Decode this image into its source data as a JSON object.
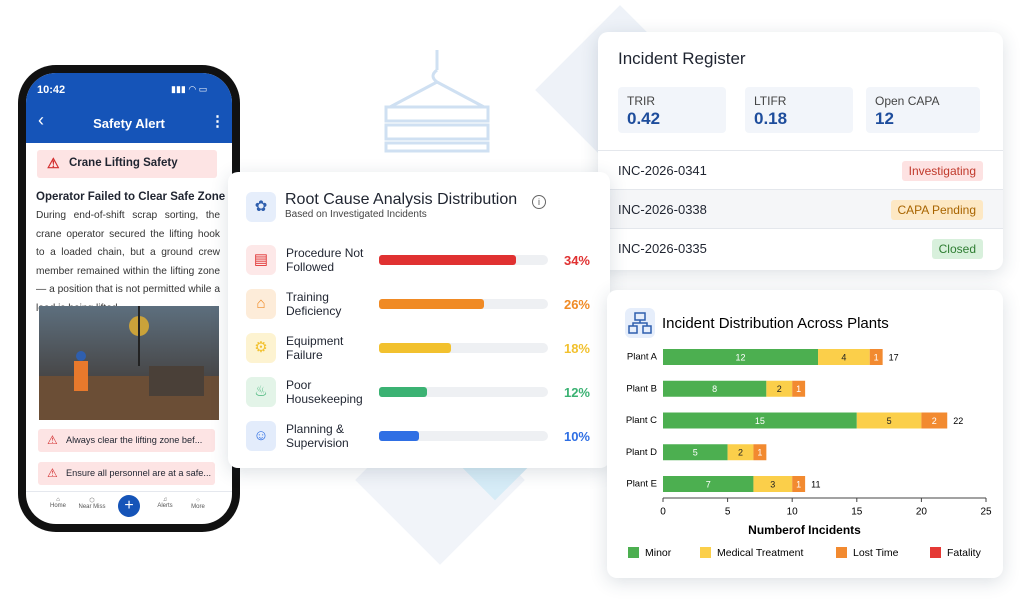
{
  "phone": {
    "time": "10:42",
    "title": "Safety Alert",
    "alert": "Crane Lifting Safety",
    "heading": "Operator Failed to Clear Safe Zone",
    "body": "During end-of-shift scrap sorting, the crane operator secured the lifting hook to a loaded chain, but a ground crew member remained within the lifting zone — a position that is not permitted while a load is being lifted.",
    "tips": [
      "Always clear the lifting zone bef...",
      "Ensure all personnel are at a safe..."
    ],
    "nav": [
      "Home",
      "Near Miss",
      "Alerts",
      "More"
    ]
  },
  "incident_register": {
    "title": "Incident Register",
    "kpis": [
      {
        "label": "TRIR",
        "value": 0.42
      },
      {
        "label": "LTIFR",
        "value": 0.18
      },
      {
        "label": "Open CAPA",
        "value": 12
      }
    ],
    "rows": [
      {
        "id": "INC-2026-0341",
        "status": "Investigating"
      },
      {
        "id": "INC-2026-0338",
        "status": "CAPA Pending"
      },
      {
        "id": "INC-2026-0335",
        "status": "Closed"
      }
    ]
  },
  "chart_data": [
    {
      "type": "progress",
      "title": "Root Cause Analysis Distribution",
      "subtitle": "Based on Investigated Incidents",
      "categories": [
        "Procedure Not Followed",
        "Training Deficiency",
        "Equipment Failure",
        "Poor Housekeeping",
        "Planning & Supervision"
      ],
      "values": [
        34,
        26,
        18,
        12,
        10
      ],
      "value_labels": [
        "34%",
        "26%",
        "18%",
        "12%",
        "10%"
      ],
      "colors": [
        "#e03131",
        "#f08a24",
        "#f2c12e",
        "#3bb273",
        "#2f6fe4"
      ],
      "xlim": [
        0,
        42
      ]
    },
    {
      "type": "stacked-bar",
      "title": "Incident Distribution Across Plants",
      "categories": [
        "Plant A",
        "Plant B",
        "Plant C",
        "Plant D",
        "Plant E"
      ],
      "series": [
        {
          "name": "Minor",
          "color": "#4caf50",
          "values": [
            12,
            8,
            15,
            5,
            7
          ]
        },
        {
          "name": "Medical Treatment",
          "color": "#fbcf4a",
          "values": [
            4,
            2,
            5,
            2,
            3
          ]
        },
        {
          "name": "Lost Time",
          "color": "#f28a30",
          "values": [
            1,
            1,
            2,
            1,
            1
          ]
        },
        {
          "name": "Fatality",
          "color": "#e53935",
          "values": [
            0,
            0,
            0,
            0,
            0
          ]
        }
      ],
      "totals": [
        17,
        null,
        22,
        null,
        11
      ],
      "xlabel": "Numberof Incidents",
      "xlim": [
        0,
        25
      ],
      "xticks": [
        0,
        5,
        10,
        15,
        20,
        25
      ],
      "legend": "bottom"
    }
  ]
}
